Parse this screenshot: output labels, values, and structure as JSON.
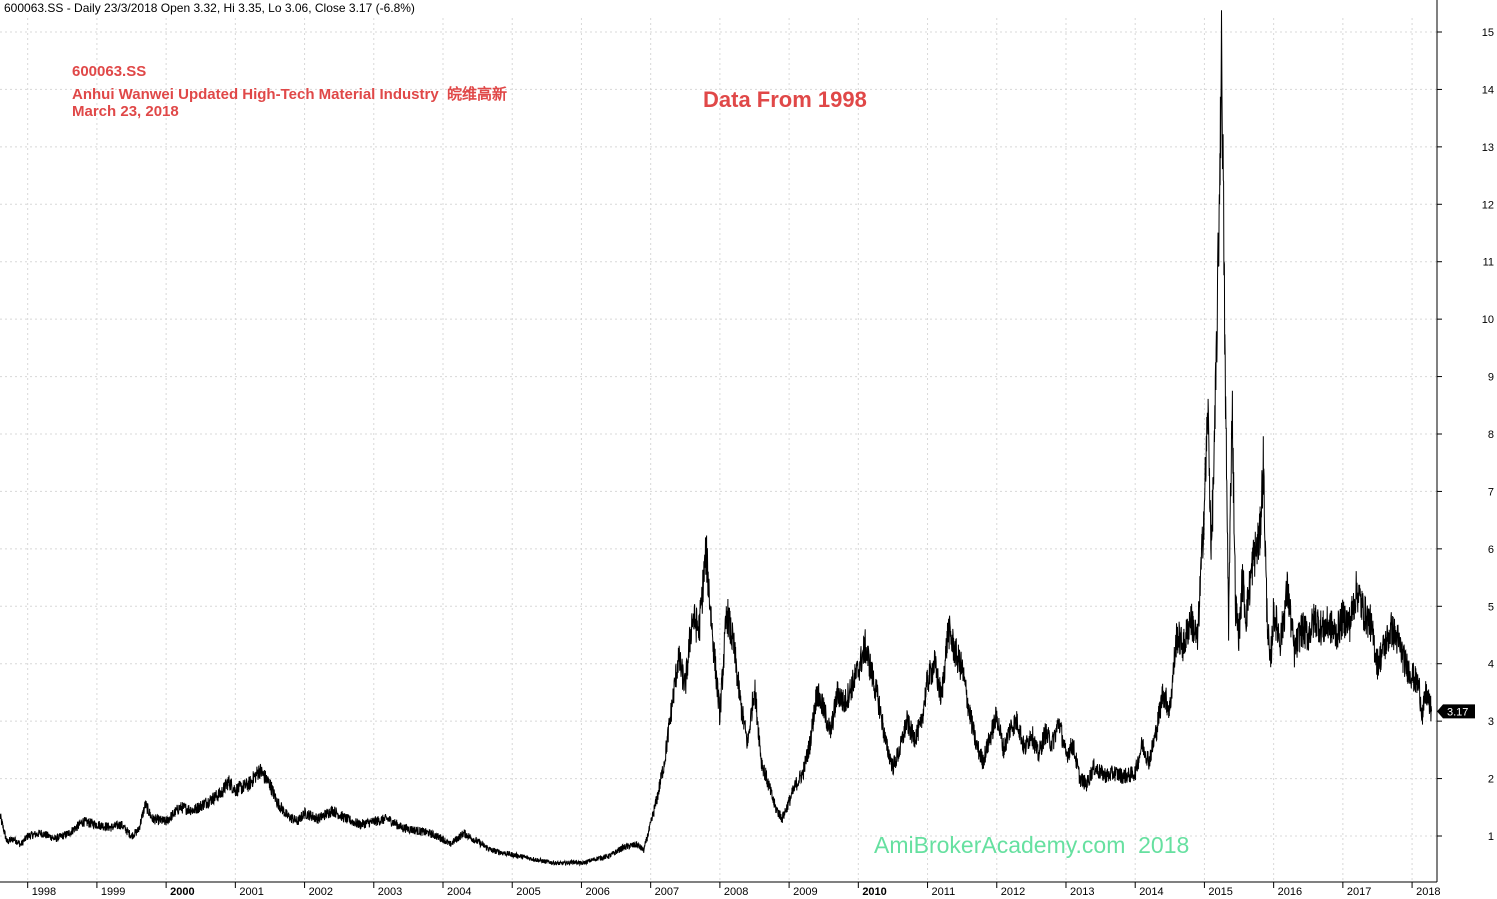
{
  "header_text": "600063.SS - Daily 23/3/2018 Open 3.32, Hi 3.35, Lo 3.06, Close 3.17 (-6.8%)",
  "annotations": {
    "ticker": "600063.SS",
    "company": "Anhui Wanwei Updated High-Tech Material Industry  皖维高新",
    "date": "March 23, 2018",
    "data_from": "Data From 1998",
    "watermark": "AmiBrokerAcademy.com  2018"
  },
  "colors": {
    "line": "#000000",
    "grid": "#d8d8d8",
    "annotation_red": "#e04848",
    "watermark_green": "#66e0a0",
    "last_price_box": "#000000"
  },
  "chart_data": {
    "type": "line",
    "title": "",
    "xlabel": "",
    "ylabel": "",
    "ylim": [
      0.1,
      15.5
    ],
    "y_ticks": [
      1,
      2,
      3,
      4,
      5,
      6,
      7,
      8,
      9,
      10,
      11,
      12,
      13,
      14,
      15
    ],
    "x_tick_labels": [
      "1998",
      "1999",
      "2000",
      "2001",
      "2002",
      "2003",
      "2004",
      "2005",
      "2006",
      "2007",
      "2008",
      "2009",
      "2010",
      "2011",
      "2012",
      "2013",
      "2014",
      "2015",
      "2016",
      "2017",
      "2018"
    ],
    "bold_tick_labels": [
      "2000",
      "2010"
    ],
    "grid": true,
    "last_price_label": "3.17",
    "series": [
      {
        "values_xy": [
          [
            1997.6,
            1.35
          ],
          [
            1997.7,
            0.9
          ],
          [
            1997.8,
            0.95
          ],
          [
            1997.9,
            0.85
          ],
          [
            1998.0,
            1.0
          ],
          [
            1998.2,
            1.05
          ],
          [
            1998.4,
            0.95
          ],
          [
            1998.6,
            1.05
          ],
          [
            1998.8,
            1.25
          ],
          [
            1999.0,
            1.2
          ],
          [
            1999.2,
            1.15
          ],
          [
            1999.35,
            1.2
          ],
          [
            1999.5,
            1.0
          ],
          [
            1999.6,
            1.1
          ],
          [
            1999.7,
            1.55
          ],
          [
            1999.8,
            1.3
          ],
          [
            2000.0,
            1.25
          ],
          [
            2000.2,
            1.5
          ],
          [
            2000.4,
            1.45
          ],
          [
            2000.6,
            1.6
          ],
          [
            2000.8,
            1.75
          ],
          [
            2000.9,
            1.95
          ],
          [
            2001.0,
            1.8
          ],
          [
            2001.2,
            1.9
          ],
          [
            2001.35,
            2.15
          ],
          [
            2001.5,
            1.9
          ],
          [
            2001.6,
            1.6
          ],
          [
            2001.75,
            1.35
          ],
          [
            2001.9,
            1.25
          ],
          [
            2002.0,
            1.4
          ],
          [
            2002.2,
            1.3
          ],
          [
            2002.4,
            1.45
          ],
          [
            2002.6,
            1.3
          ],
          [
            2002.8,
            1.2
          ],
          [
            2003.0,
            1.25
          ],
          [
            2003.2,
            1.3
          ],
          [
            2003.4,
            1.15
          ],
          [
            2003.6,
            1.1
          ],
          [
            2003.8,
            1.05
          ],
          [
            2004.0,
            0.95
          ],
          [
            2004.1,
            0.85
          ],
          [
            2004.3,
            1.05
          ],
          [
            2004.5,
            0.9
          ],
          [
            2004.7,
            0.75
          ],
          [
            2004.9,
            0.7
          ],
          [
            2005.1,
            0.65
          ],
          [
            2005.3,
            0.6
          ],
          [
            2005.5,
            0.55
          ],
          [
            2005.7,
            0.52
          ],
          [
            2005.9,
            0.55
          ],
          [
            2006.0,
            0.52
          ],
          [
            2006.2,
            0.6
          ],
          [
            2006.4,
            0.65
          ],
          [
            2006.6,
            0.8
          ],
          [
            2006.8,
            0.85
          ],
          [
            2006.9,
            0.75
          ],
          [
            2007.0,
            1.2
          ],
          [
            2007.1,
            1.7
          ],
          [
            2007.2,
            2.3
          ],
          [
            2007.3,
            3.2
          ],
          [
            2007.4,
            4.1
          ],
          [
            2007.5,
            3.6
          ],
          [
            2007.6,
            4.8
          ],
          [
            2007.7,
            4.6
          ],
          [
            2007.8,
            5.95
          ],
          [
            2007.9,
            4.4
          ],
          [
            2008.0,
            3.1
          ],
          [
            2008.1,
            4.9
          ],
          [
            2008.2,
            4.3
          ],
          [
            2008.3,
            3.3
          ],
          [
            2008.4,
            2.6
          ],
          [
            2008.5,
            3.6
          ],
          [
            2008.6,
            2.3
          ],
          [
            2008.7,
            1.9
          ],
          [
            2008.8,
            1.5
          ],
          [
            2008.9,
            1.3
          ],
          [
            2009.0,
            1.6
          ],
          [
            2009.1,
            1.9
          ],
          [
            2009.2,
            2.1
          ],
          [
            2009.3,
            2.6
          ],
          [
            2009.4,
            3.5
          ],
          [
            2009.5,
            3.2
          ],
          [
            2009.6,
            2.8
          ],
          [
            2009.7,
            3.5
          ],
          [
            2009.8,
            3.3
          ],
          [
            2009.9,
            3.6
          ],
          [
            2010.0,
            3.9
          ],
          [
            2010.1,
            4.3
          ],
          [
            2010.2,
            3.8
          ],
          [
            2010.3,
            3.3
          ],
          [
            2010.4,
            2.6
          ],
          [
            2010.5,
            2.2
          ],
          [
            2010.6,
            2.5
          ],
          [
            2010.7,
            3.0
          ],
          [
            2010.8,
            2.7
          ],
          [
            2010.9,
            2.9
          ],
          [
            2011.0,
            3.7
          ],
          [
            2011.1,
            4.0
          ],
          [
            2011.2,
            3.4
          ],
          [
            2011.3,
            4.6
          ],
          [
            2011.4,
            4.2
          ],
          [
            2011.5,
            3.9
          ],
          [
            2011.6,
            3.2
          ],
          [
            2011.7,
            2.6
          ],
          [
            2011.8,
            2.3
          ],
          [
            2011.9,
            2.7
          ],
          [
            2012.0,
            3.1
          ],
          [
            2012.1,
            2.5
          ],
          [
            2012.2,
            2.9
          ],
          [
            2012.3,
            3.0
          ],
          [
            2012.4,
            2.5
          ],
          [
            2012.5,
            2.8
          ],
          [
            2012.6,
            2.4
          ],
          [
            2012.7,
            2.8
          ],
          [
            2012.8,
            2.6
          ],
          [
            2012.9,
            3.0
          ],
          [
            2013.0,
            2.4
          ],
          [
            2013.1,
            2.6
          ],
          [
            2013.2,
            2.0
          ],
          [
            2013.3,
            1.9
          ],
          [
            2013.4,
            2.2
          ],
          [
            2013.5,
            2.1
          ],
          [
            2013.6,
            2.05
          ],
          [
            2013.7,
            2.1
          ],
          [
            2013.8,
            2.05
          ],
          [
            2013.9,
            2.05
          ],
          [
            2014.0,
            2.1
          ],
          [
            2014.1,
            2.6
          ],
          [
            2014.2,
            2.3
          ],
          [
            2014.3,
            2.8
          ],
          [
            2014.4,
            3.5
          ],
          [
            2014.5,
            3.2
          ],
          [
            2014.6,
            4.5
          ],
          [
            2014.7,
            4.3
          ],
          [
            2014.8,
            4.8
          ],
          [
            2014.9,
            4.4
          ],
          [
            2015.0,
            6.8
          ],
          [
            2015.05,
            8.4
          ],
          [
            2015.1,
            6.0
          ],
          [
            2015.15,
            8.0
          ],
          [
            2015.2,
            11.0
          ],
          [
            2015.25,
            14.8
          ],
          [
            2015.3,
            9.0
          ],
          [
            2015.35,
            4.7
          ],
          [
            2015.4,
            8.6
          ],
          [
            2015.45,
            5.0
          ],
          [
            2015.5,
            4.5
          ],
          [
            2015.55,
            5.5
          ],
          [
            2015.6,
            4.8
          ],
          [
            2015.7,
            5.8
          ],
          [
            2015.8,
            6.2
          ],
          [
            2015.85,
            7.5
          ],
          [
            2015.9,
            5.0
          ],
          [
            2015.95,
            3.9
          ],
          [
            2016.0,
            4.9
          ],
          [
            2016.1,
            4.4
          ],
          [
            2016.2,
            5.3
          ],
          [
            2016.3,
            4.2
          ],
          [
            2016.4,
            4.6
          ],
          [
            2016.5,
            4.5
          ],
          [
            2016.6,
            4.8
          ],
          [
            2016.7,
            4.6
          ],
          [
            2016.8,
            4.7
          ],
          [
            2016.9,
            4.5
          ],
          [
            2017.0,
            4.8
          ],
          [
            2017.1,
            4.7
          ],
          [
            2017.2,
            5.3
          ],
          [
            2017.3,
            4.9
          ],
          [
            2017.4,
            4.7
          ],
          [
            2017.5,
            4.0
          ],
          [
            2017.6,
            4.3
          ],
          [
            2017.7,
            4.6
          ],
          [
            2017.8,
            4.4
          ],
          [
            2017.9,
            4.0
          ],
          [
            2018.0,
            3.8
          ],
          [
            2018.1,
            3.6
          ],
          [
            2018.15,
            3.1
          ],
          [
            2018.2,
            3.5
          ],
          [
            2018.25,
            3.3
          ],
          [
            2018.28,
            3.17
          ]
        ]
      }
    ]
  }
}
